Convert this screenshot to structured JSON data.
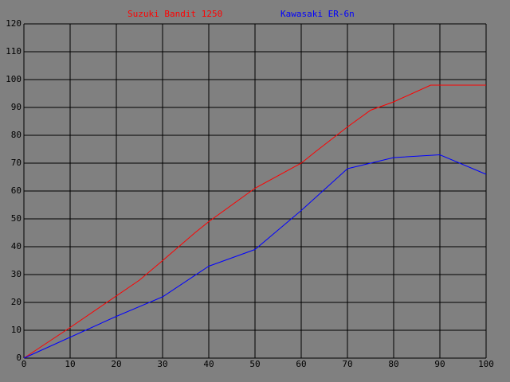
{
  "chart_data": {
    "type": "line",
    "series": [
      {
        "name": "Suzuki Bandit 1250",
        "color": "#ff0000",
        "x": [
          0,
          10,
          25,
          30,
          37,
          40,
          50,
          60,
          63,
          70,
          75,
          80,
          88,
          90,
          100
        ],
        "values": [
          0,
          11,
          28,
          35,
          45,
          49,
          61,
          70,
          74,
          83,
          89,
          92,
          98,
          98,
          98
        ]
      },
      {
        "name": "Kawasaki ER-6n",
        "color": "#0000ff",
        "x": [
          0,
          10,
          20,
          30,
          40,
          50,
          60,
          70,
          75,
          80,
          90,
          100
        ],
        "values": [
          0,
          7.5,
          15,
          22,
          33,
          39,
          53,
          68,
          70,
          72,
          73,
          66
        ]
      }
    ],
    "xlim": [
      0,
      100
    ],
    "xticks": [
      0,
      10,
      20,
      30,
      40,
      50,
      60,
      70,
      80,
      90,
      100
    ],
    "ylim": [
      0,
      120
    ],
    "yticks": [
      0,
      10,
      20,
      30,
      40,
      50,
      60,
      70,
      80,
      90,
      100,
      110,
      120
    ],
    "grid": true
  }
}
